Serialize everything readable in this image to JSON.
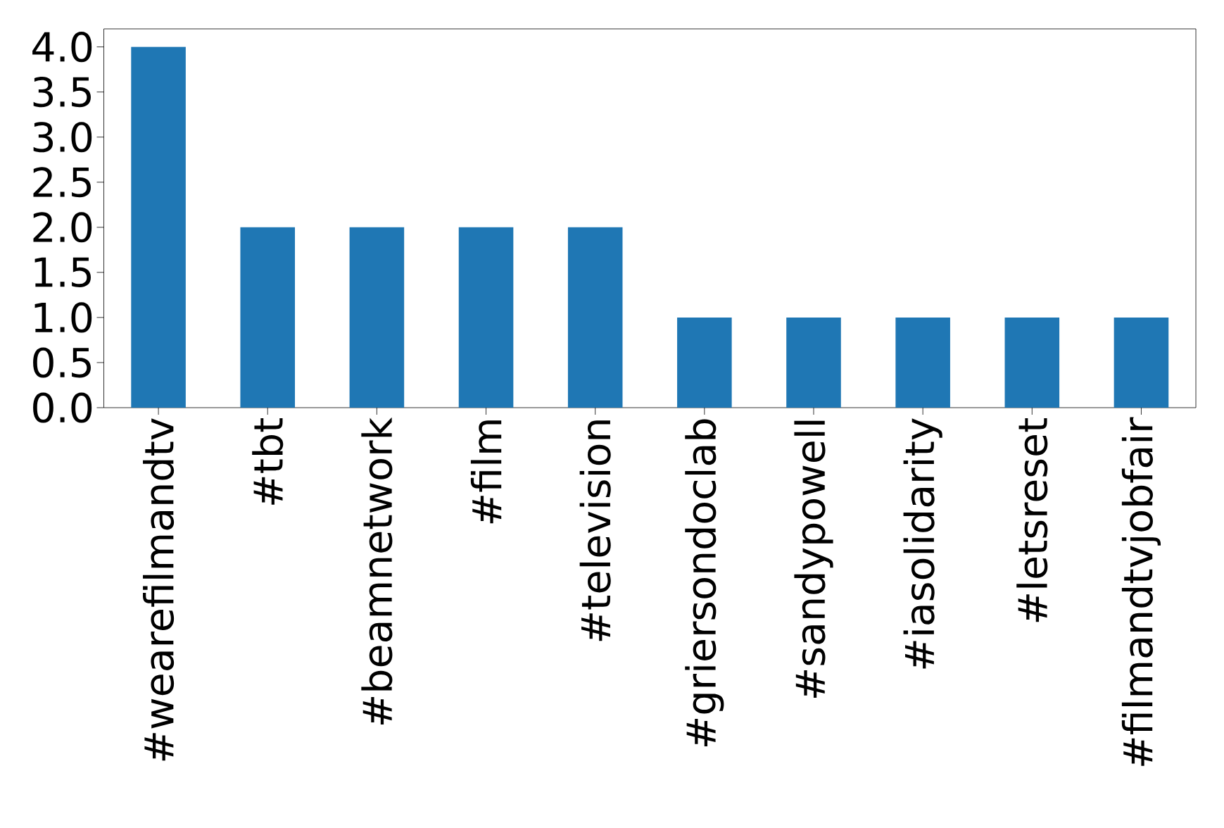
{
  "chart_data": {
    "type": "bar",
    "categories": [
      "#wearefilmandtv",
      "#tbt",
      "#beamnetwork",
      "#film",
      "#television",
      "#griersondoclab",
      "#sandypowell",
      "#iasolidarity",
      "#letsreset",
      "#filmandtvjobfair"
    ],
    "values": [
      4,
      2,
      2,
      2,
      2,
      1,
      1,
      1,
      1,
      1
    ],
    "color": "#1f77b4",
    "ylim": [
      0,
      4.2
    ],
    "yticks": [
      {
        "value": 0,
        "label": "0.0"
      },
      0.5,
      {
        "value": 1,
        "label": "1.0"
      },
      1.5,
      {
        "value": 2,
        "label": "2.0"
      },
      2.5,
      {
        "value": 3,
        "label": "3.0"
      },
      3.5,
      {
        "value": 4,
        "label": "4.0"
      }
    ]
  }
}
